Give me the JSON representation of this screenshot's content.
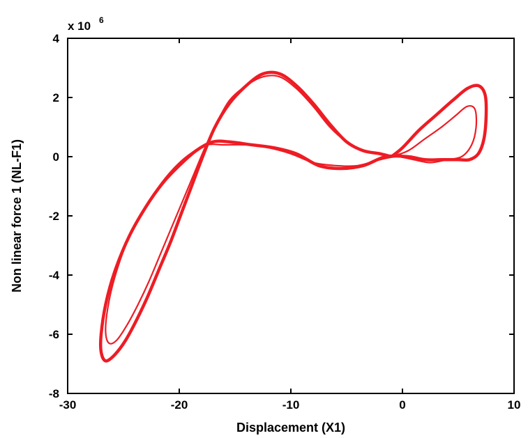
{
  "chart_data": {
    "type": "line",
    "title": "",
    "xlabel": "Displacement (X1)",
    "ylabel": "Non linear force 1 (NL-F1)",
    "y_multiplier_base": "x 10",
    "y_multiplier_exponent": "6",
    "xlim": [
      -30,
      10
    ],
    "ylim": [
      -8,
      4
    ],
    "x_ticks": [
      -30,
      -20,
      -10,
      0,
      10
    ],
    "y_ticks": [
      -8,
      -6,
      -4,
      -2,
      0,
      2,
      4
    ],
    "x_tick_labels": [
      "-30",
      "-20",
      "-10",
      "0",
      "10"
    ],
    "y_tick_labels": [
      "-8",
      "-6",
      "-4",
      "-2",
      "0",
      "2",
      "4"
    ],
    "grid": false,
    "legend": "none",
    "series_color": "#ee1c24",
    "series": [
      {
        "x": [
          -1.0,
          0.0,
          1.5,
          3.0,
          4.5,
          5.8,
          6.8,
          7.4,
          7.5,
          7.3,
          6.8,
          6.0,
          5.0,
          3.5,
          2.0,
          0.5,
          -1.5,
          -3.5,
          -5.5,
          -7.5,
          -9.5,
          -11.5,
          -13.5,
          -15.5,
          -17.0,
          -18.5,
          -20.0,
          -21.5,
          -23.0,
          -24.5,
          -25.8,
          -26.6,
          -27.0,
          -27.0,
          -26.6,
          -25.8,
          -24.8,
          -23.8,
          -22.8,
          -21.8,
          -20.8,
          -19.8,
          -18.8,
          -17.8,
          -16.8,
          -15.5,
          -14.0,
          -12.5,
          -11.0,
          -9.5,
          -8.0,
          -6.5,
          -5.0,
          -3.5,
          -2.0,
          -1.0
        ],
        "y": [
          0.0,
          0.3,
          0.9,
          1.4,
          1.9,
          2.3,
          2.4,
          2.1,
          1.4,
          0.6,
          0.1,
          -0.1,
          -0.1,
          -0.1,
          -0.1,
          0.0,
          0.0,
          -0.3,
          -0.4,
          -0.3,
          0.1,
          0.3,
          0.4,
          0.5,
          0.5,
          0.2,
          -0.3,
          -0.9,
          -1.7,
          -2.7,
          -3.9,
          -5.0,
          -6.0,
          -6.6,
          -6.9,
          -6.7,
          -6.2,
          -5.5,
          -4.7,
          -3.8,
          -2.9,
          -1.9,
          -0.9,
          0.1,
          1.0,
          1.8,
          2.4,
          2.8,
          2.8,
          2.4,
          1.8,
          1.1,
          0.5,
          0.2,
          0.1,
          0.0
        ]
      },
      {
        "x": [
          -1.0,
          0.5,
          2.0,
          3.5,
          4.8,
          5.8,
          6.5,
          6.6,
          6.2,
          5.3,
          4.0,
          2.5,
          1.0,
          -0.5,
          -2.0,
          -4.0,
          -6.0,
          -8.0,
          -10.0,
          -12.0,
          -14.0,
          -16.0,
          -17.5,
          -19.0,
          -20.5,
          -22.0,
          -23.5,
          -24.8,
          -25.8,
          -26.4,
          -26.6,
          -26.3,
          -25.6,
          -24.7,
          -23.7,
          -22.7,
          -21.7,
          -20.7,
          -19.7,
          -18.7,
          -17.7,
          -16.7,
          -15.5,
          -14.0,
          -12.5,
          -11.0,
          -9.5,
          -8.0,
          -6.5,
          -5.0,
          -3.5,
          -2.0,
          -1.0
        ],
        "y": [
          0.0,
          0.2,
          0.6,
          1.0,
          1.4,
          1.7,
          1.6,
          1.0,
          0.4,
          0.0,
          -0.1,
          -0.2,
          -0.1,
          0.0,
          -0.1,
          -0.3,
          -0.3,
          -0.2,
          0.1,
          0.3,
          0.4,
          0.4,
          0.4,
          0.1,
          -0.4,
          -1.1,
          -2.0,
          -3.0,
          -4.1,
          -5.1,
          -5.9,
          -6.3,
          -6.2,
          -5.7,
          -5.0,
          -4.2,
          -3.3,
          -2.4,
          -1.5,
          -0.6,
          0.3,
          1.1,
          1.9,
          2.4,
          2.7,
          2.7,
          2.3,
          1.7,
          1.0,
          0.5,
          0.2,
          0.1,
          0.0
        ]
      }
    ]
  }
}
